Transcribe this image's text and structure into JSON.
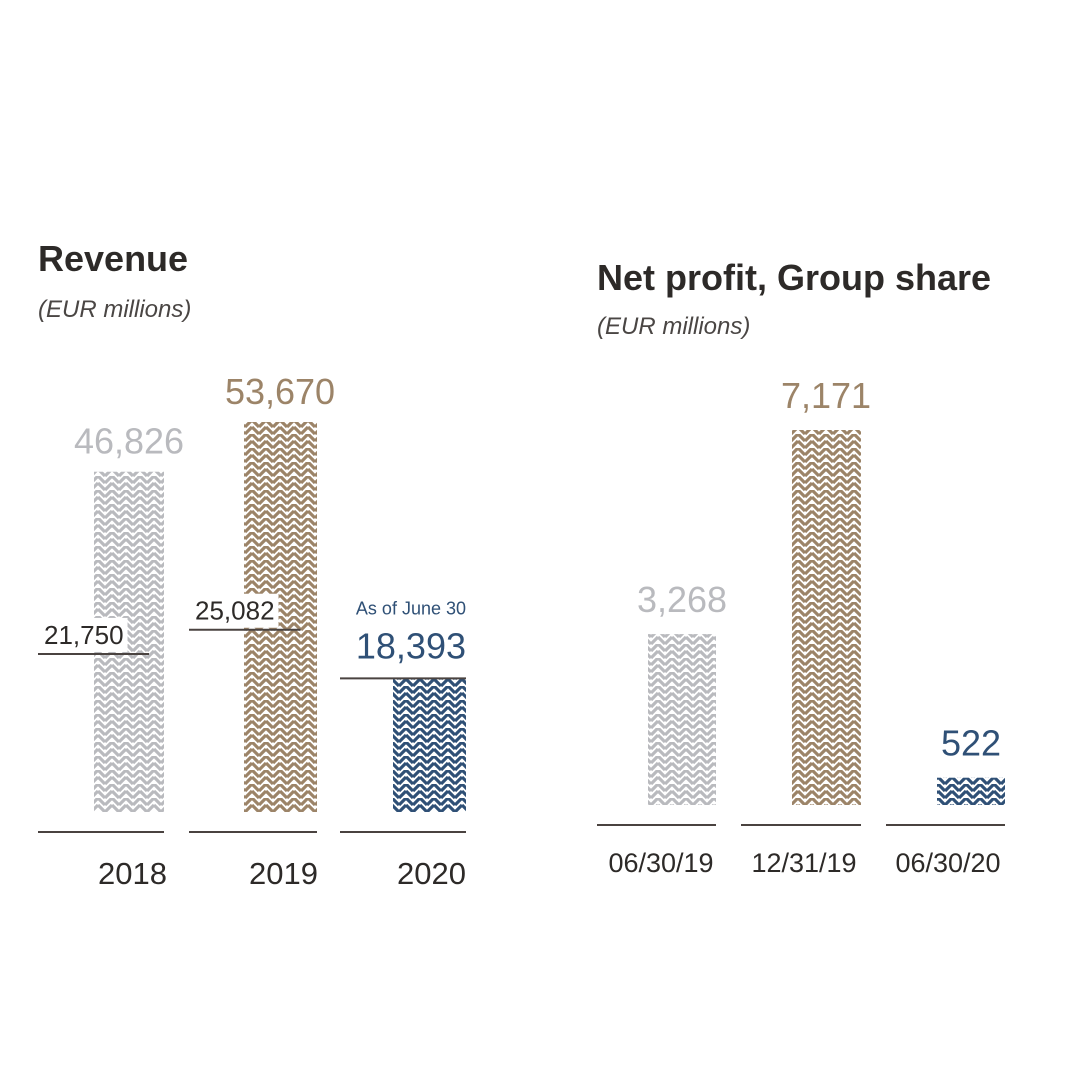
{
  "colors": {
    "gray": "#b9babe",
    "gold": "#9c8468",
    "blue": "#2f5076",
    "axis": "#4a4340",
    "text": "#2d2a28"
  },
  "chart_data": [
    {
      "type": "bar",
      "title": "Revenue",
      "unit": "(EUR millions)",
      "categories": [
        "2018",
        "2019",
        "2020"
      ],
      "values": [
        46826,
        53670,
        18393
      ],
      "value_labels": [
        "46,826",
        "53,670",
        "18,393"
      ],
      "colors": [
        "gray",
        "gold",
        "blue"
      ],
      "half_year_values": [
        21750,
        25082
      ],
      "half_year_labels": [
        "21,750",
        "25,082"
      ],
      "annotation": "As of June 30",
      "ylim": [
        0,
        53670
      ]
    },
    {
      "type": "bar",
      "title": "Net profit, Group share",
      "unit": "(EUR millions)",
      "categories": [
        "06/30/19",
        "12/31/19",
        "06/30/20"
      ],
      "values": [
        3268,
        7171,
        522
      ],
      "value_labels": [
        "3,268",
        "7,171",
        "522"
      ],
      "colors": [
        "gray",
        "gold",
        "blue"
      ],
      "ylim": [
        0,
        7171
      ]
    }
  ]
}
